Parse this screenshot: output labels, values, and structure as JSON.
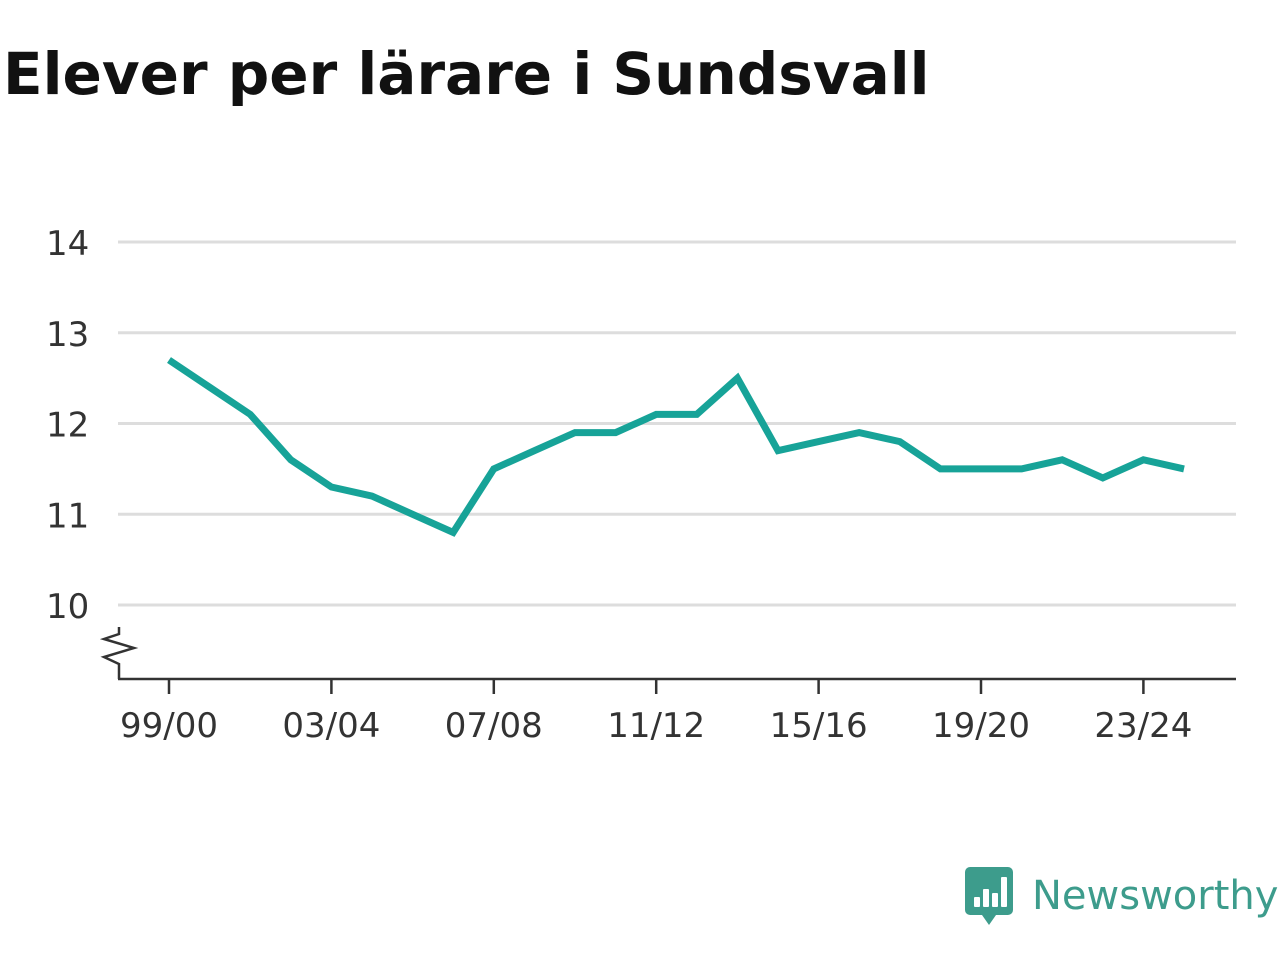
{
  "chart_data": {
    "type": "line",
    "title": "Elever per lärare i Sundsvall",
    "xlabel": "",
    "ylabel": "",
    "x": [
      "99/00",
      "00/01",
      "01/02",
      "02/03",
      "03/04",
      "04/05",
      "05/06",
      "06/07",
      "07/08",
      "08/09",
      "09/10",
      "10/11",
      "11/12",
      "12/13",
      "13/14",
      "14/15",
      "15/16",
      "16/17",
      "17/18",
      "18/19",
      "19/20",
      "20/21",
      "21/22",
      "22/23",
      "23/24",
      "24/25"
    ],
    "x_tick_labels": [
      "99/00",
      "03/04",
      "07/08",
      "11/12",
      "15/16",
      "19/20",
      "23/24"
    ],
    "series": [
      {
        "values": [
          12.7,
          12.4,
          12.1,
          11.6,
          11.3,
          11.2,
          11.0,
          10.8,
          11.5,
          11.7,
          11.9,
          11.9,
          12.1,
          12.1,
          12.5,
          11.7,
          11.8,
          11.9,
          11.8,
          11.5,
          11.5,
          11.5,
          11.6,
          11.4,
          11.6,
          11.5
        ],
        "color": "#17a398"
      }
    ],
    "y_ticks": [
      10,
      11,
      12,
      13,
      14
    ],
    "ylim": [
      9.2,
      14
    ],
    "y_axis_break": true,
    "grid": true,
    "legend": "none"
  },
  "branding": {
    "name": "Newsworthy",
    "color": "#3d9c8c",
    "icon": "bar-chart-speech-bubble-icon"
  }
}
